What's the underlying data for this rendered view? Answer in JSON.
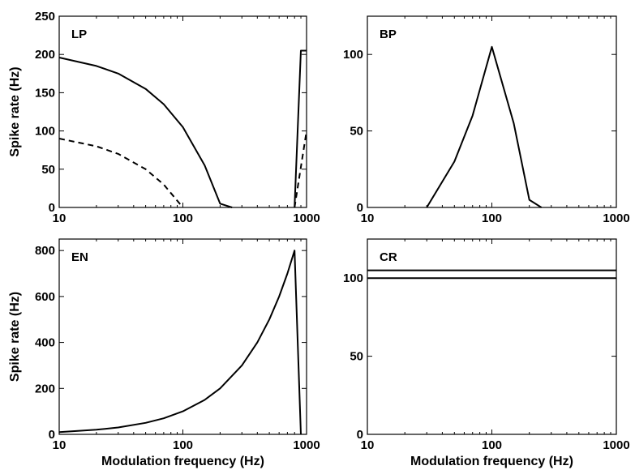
{
  "chart_data": [
    {
      "type": "line",
      "panel_label": "LP",
      "xlabel": "",
      "ylabel": "Spike rate (Hz)",
      "xscale": "log",
      "xlim": [
        10,
        1000
      ],
      "ylim": [
        0,
        250
      ],
      "xticks": [
        "10",
        "100",
        "1000"
      ],
      "yticks": [
        "0",
        "50",
        "100",
        "150",
        "200",
        "250"
      ],
      "series": [
        {
          "style": "solid",
          "x": [
            10,
            20,
            30,
            50,
            70,
            100,
            150,
            200,
            250
          ],
          "y": [
            196,
            185,
            175,
            155,
            135,
            105,
            55,
            5,
            0
          ]
        },
        {
          "style": "solid",
          "x": [
            800,
            900,
            1000
          ],
          "y": [
            0,
            205,
            205
          ]
        },
        {
          "style": "dashed",
          "x": [
            10,
            20,
            30,
            50,
            70,
            100
          ],
          "y": [
            90,
            80,
            70,
            50,
            30,
            0
          ]
        },
        {
          "style": "dashed",
          "x": [
            800,
            1000
          ],
          "y": [
            0,
            100
          ]
        }
      ]
    },
    {
      "type": "line",
      "panel_label": "BP",
      "xlabel": "",
      "ylabel": "",
      "xscale": "log",
      "xlim": [
        10,
        1000
      ],
      "ylim": [
        0,
        125
      ],
      "xticks": [
        "10",
        "100",
        "1000"
      ],
      "yticks": [
        "0",
        "50",
        "100"
      ],
      "series": [
        {
          "style": "solid",
          "x": [
            30,
            50,
            70,
            100,
            150,
            200,
            250
          ],
          "y": [
            0,
            30,
            60,
            105,
            55,
            5,
            0
          ]
        }
      ]
    },
    {
      "type": "line",
      "panel_label": "EN",
      "xlabel": "Modulation frequency (Hz)",
      "ylabel": "Spike rate (Hz)",
      "xscale": "log",
      "xlim": [
        10,
        1000
      ],
      "ylim": [
        0,
        850
      ],
      "xticks": [
        "10",
        "100",
        "1000"
      ],
      "yticks": [
        "0",
        "200",
        "400",
        "600",
        "800"
      ],
      "series": [
        {
          "style": "solid",
          "x": [
            10,
            20,
            30,
            50,
            70,
            100,
            150,
            200,
            300,
            400,
            500,
            600,
            700,
            800,
            900
          ],
          "y": [
            10,
            20,
            30,
            50,
            70,
            100,
            150,
            200,
            300,
            400,
            500,
            600,
            700,
            800,
            0
          ]
        }
      ]
    },
    {
      "type": "line",
      "panel_label": "CR",
      "xlabel": "Modulation frequency (Hz)",
      "ylabel": "",
      "xscale": "log",
      "xlim": [
        10,
        1000
      ],
      "ylim": [
        0,
        125
      ],
      "xticks": [
        "10",
        "100",
        "1000"
      ],
      "yticks": [
        "0",
        "50",
        "100"
      ],
      "series": [
        {
          "style": "solid",
          "x": [
            10,
            1000
          ],
          "y": [
            105,
            105
          ]
        },
        {
          "style": "solid",
          "x": [
            10,
            1000
          ],
          "y": [
            100,
            100
          ]
        }
      ]
    }
  ]
}
